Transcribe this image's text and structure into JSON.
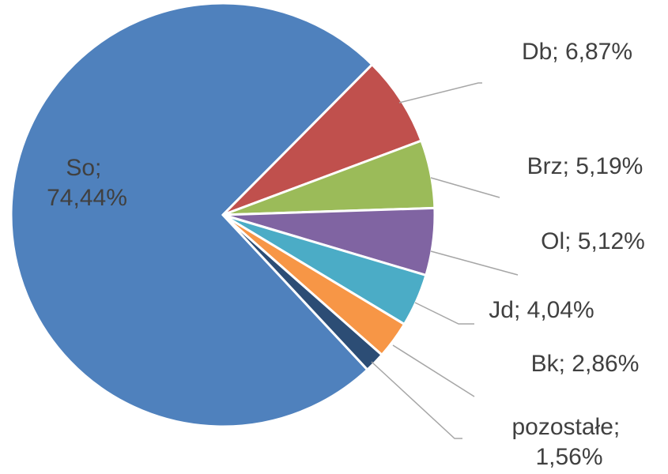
{
  "chart_data": {
    "type": "pie",
    "values": [
      74.44,
      6.87,
      5.19,
      5.12,
      4.04,
      2.86,
      1.56
    ],
    "value_labels": [
      "So; 74,44%",
      "Db; 6,87%",
      "Brz; 5,19%",
      "Ol; 5,12%",
      "Jd; 4,04%",
      "Bk; 2,86%",
      "pozostałe; 1,56%"
    ],
    "colors": [
      "#4f81bd",
      "#c0504d",
      "#9bbb59",
      "#8064a2",
      "#4bacc6",
      "#f79646",
      "#2c4d75"
    ]
  }
}
